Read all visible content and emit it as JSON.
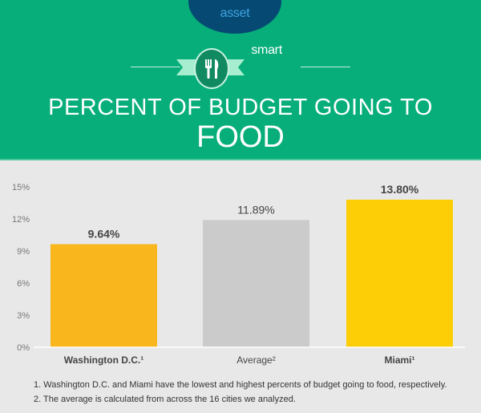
{
  "brand": {
    "logo_text_a": "smart",
    "logo_text_b": "asset",
    "icon": "fork-knife-icon"
  },
  "header": {
    "title_line1": "PERCENT OF BUDGET GOING TO",
    "title_line2": "FOOD"
  },
  "colors": {
    "header_bg": "#07ae79",
    "background": "#e8e8e8",
    "dc": "#f9b61d",
    "average": "#cbcbcb",
    "miami": "#fdcd05"
  },
  "chart_data": {
    "type": "bar",
    "categories": [
      "Washington D.C.¹",
      "Average²",
      "Miami¹"
    ],
    "values": [
      9.64,
      11.89,
      13.8
    ],
    "data_labels": [
      "9.64%",
      "11.89%",
      "13.80%"
    ],
    "ylim": [
      0,
      15
    ],
    "yticks": [
      0,
      3,
      6,
      9,
      12,
      15
    ],
    "ytick_labels": [
      "0%",
      "3%",
      "6%",
      "9%",
      "12%",
      "15%"
    ],
    "grid": false,
    "bar_colors": [
      "#f9b61d",
      "#cbcbcb",
      "#fdcd05"
    ]
  },
  "footnotes": [
    "1.   Washington D.C. and Miami have the lowest and highest percents of budget going to food, respectively.",
    "2.  The average is calculated from across the 16 cities we analyzed."
  ]
}
